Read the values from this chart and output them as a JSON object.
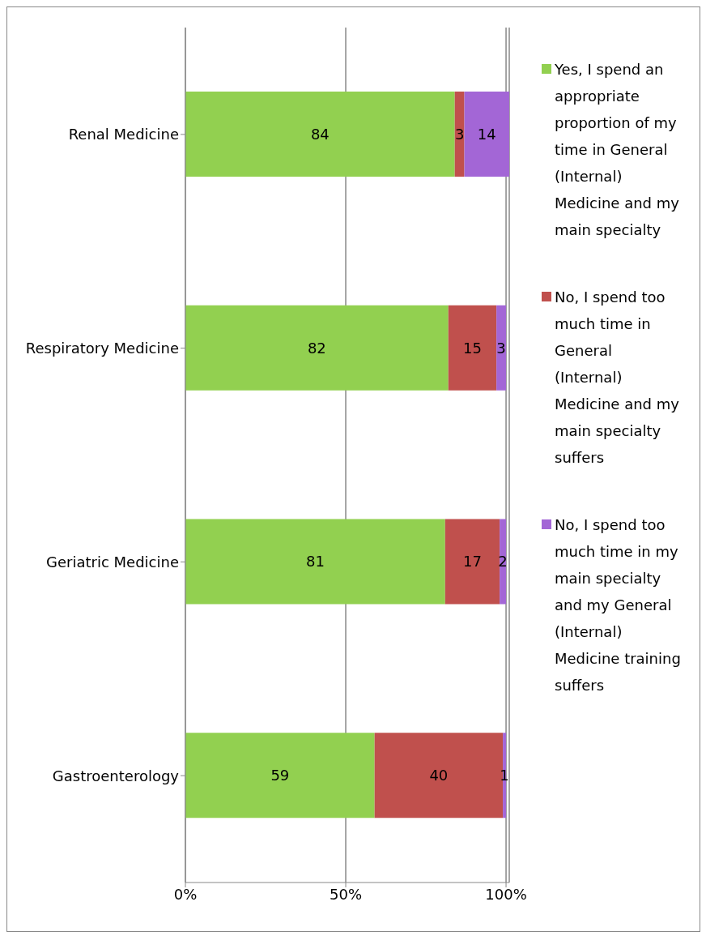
{
  "chart_data": {
    "type": "bar",
    "orientation": "horizontal",
    "stacked": true,
    "categories": [
      "Renal Medicine",
      "Respiratory Medicine",
      "Geriatric Medicine",
      "Gastroenterology"
    ],
    "series": [
      {
        "name": "Yes, I spend an appropriate proportion of my time in General (Internal) Medicine and my main specialty",
        "color": "#92d050",
        "values": [
          84,
          82,
          81,
          59
        ]
      },
      {
        "name": "No, I spend too much time in General (Internal) Medicine and my main specialty suffers",
        "color": "#c0504d",
        "values": [
          3,
          15,
          17,
          40
        ]
      },
      {
        "name": "No, I spend too much time in my main specialty and my General (Internal) Medicine training suffers",
        "color": "#a366d6",
        "values": [
          14,
          3,
          2,
          1
        ]
      }
    ],
    "xlim": [
      0,
      101
    ],
    "xticks": [
      {
        "value": 0,
        "label": "0%"
      },
      {
        "value": 50,
        "label": "50%"
      },
      {
        "value": 100,
        "label": "100%"
      }
    ],
    "grid": "x",
    "legend": "right",
    "data_labels": true
  }
}
